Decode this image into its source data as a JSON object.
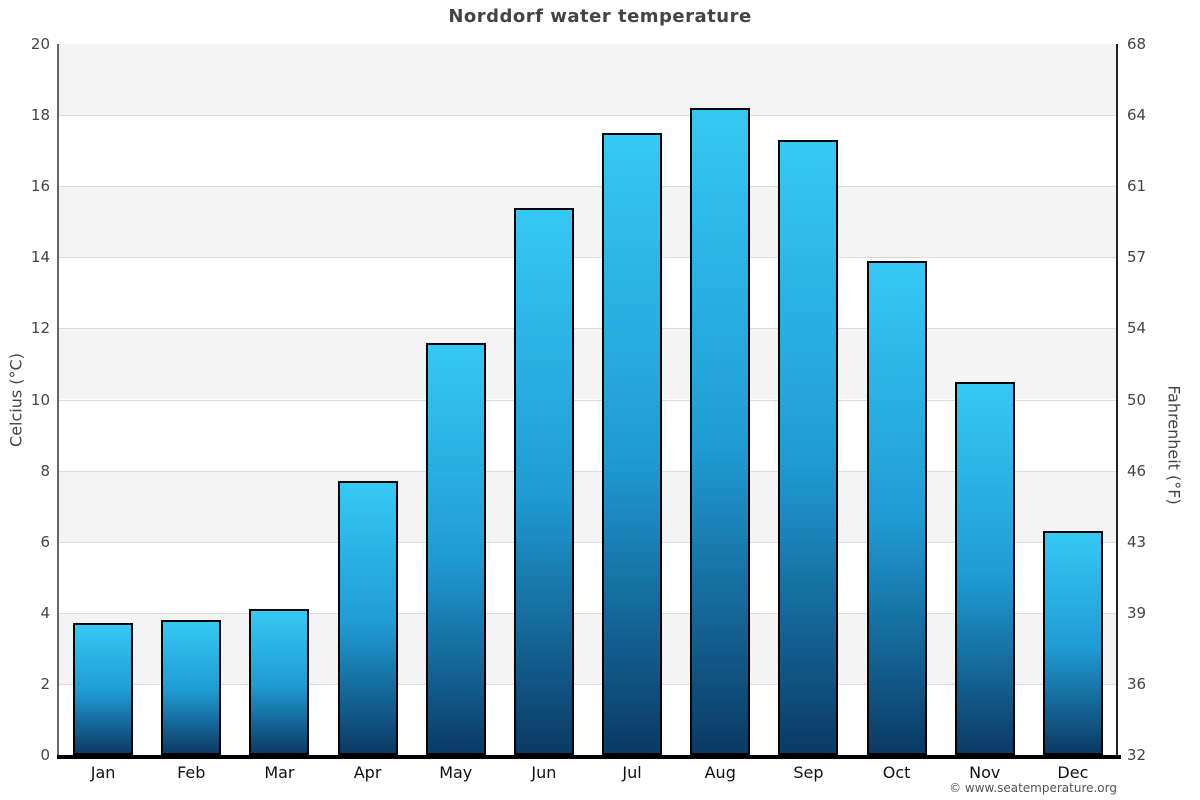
{
  "title": "Norddorf water temperature",
  "footer": {
    "credit": "© www.seatemperature.org"
  },
  "chart_data": {
    "type": "bar",
    "title": "Norddorf water temperature",
    "categories": [
      "Jan",
      "Feb",
      "Mar",
      "Apr",
      "May",
      "Jun",
      "Jul",
      "Aug",
      "Sep",
      "Oct",
      "Nov",
      "Dec"
    ],
    "values_celsius": [
      3.7,
      3.8,
      4.1,
      7.7,
      11.6,
      15.4,
      17.5,
      18.2,
      17.3,
      13.9,
      10.5,
      6.3
    ],
    "ylabel_left": "Celcius (°C)",
    "ylabel_right": "Fahrenheit (°F)",
    "y_left_ticks": [
      20,
      18,
      16,
      14,
      12,
      10,
      8,
      6,
      4,
      2,
      0
    ],
    "y_right_ticks": [
      68,
      64,
      61,
      57,
      54,
      50,
      46,
      43,
      39,
      36,
      32
    ],
    "ylim": [
      0,
      20
    ],
    "grid": "horizontal-bands-2C",
    "legend": "none",
    "colors": {
      "bar_gradient_top": "#35c8f5",
      "bar_gradient_mid": "#1f9cd4",
      "bar_gradient_bottom": "#0b3a65",
      "bar_border": "#000000",
      "band_gray": "#f4f4f4",
      "band_white": "#ffffff",
      "band_edge_line": "#dcdcdc",
      "axis_bottom": "#000000",
      "axis_left": "#666666",
      "axis_right": "#222222",
      "title_text": "#444444",
      "tick_text": "#444444",
      "month_text": "#111111",
      "credit_text": "#555555"
    }
  }
}
